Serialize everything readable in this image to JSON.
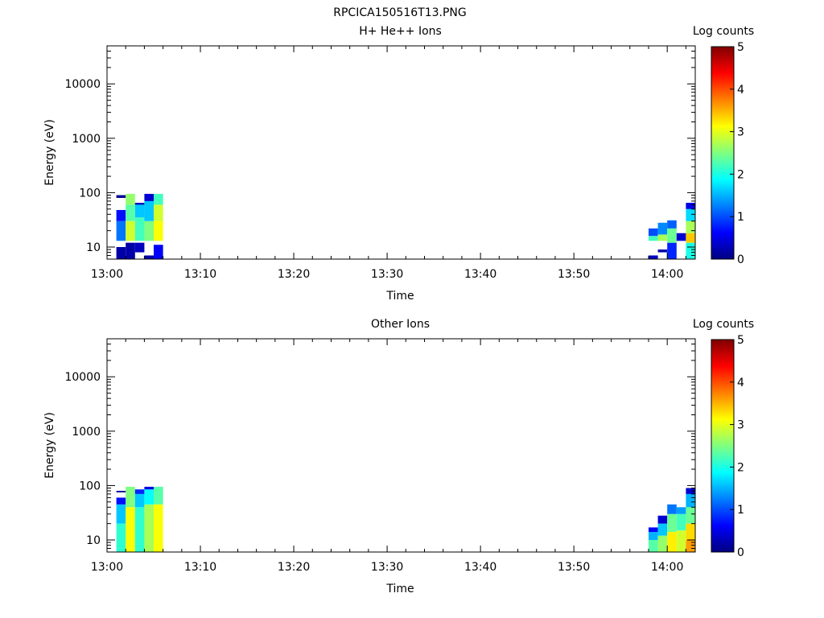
{
  "figure_title": "RPCICA150516T13.PNG",
  "chart_data": [
    {
      "type": "heatmap",
      "title": "H+ He++ Ions",
      "xlabel": "Time",
      "ylabel": "Energy (eV)",
      "x_ticks": [
        "13:00",
        "13:10",
        "13:20",
        "13:30",
        "13:40",
        "13:50",
        "14:00"
      ],
      "x_range": [
        "13:00",
        "14:03"
      ],
      "y_scale": "log",
      "y_range": [
        6,
        50000
      ],
      "y_ticks": [
        "10",
        "100",
        "1000",
        "10000"
      ],
      "colorbar": {
        "label": "Log counts",
        "range": [
          0,
          5
        ],
        "ticks": [
          "0",
          "1",
          "2",
          "3",
          "4",
          "5"
        ]
      },
      "cells": [
        {
          "t0": "13:01",
          "t1": "13:02",
          "e0": 6,
          "e1": 10,
          "v": 0.2
        },
        {
          "t0": "13:01",
          "t1": "13:02",
          "e0": 13,
          "e1": 30,
          "v": 1.2
        },
        {
          "t0": "13:01",
          "t1": "13:02",
          "e0": 30,
          "e1": 48,
          "v": 0.7
        },
        {
          "t0": "13:01",
          "t1": "13:02",
          "e0": 80,
          "e1": 90,
          "v": 0.1
        },
        {
          "t0": "13:02",
          "t1": "13:03",
          "e0": 6,
          "e1": 12,
          "v": 0.2
        },
        {
          "t0": "13:02",
          "t1": "13:03",
          "e0": 13,
          "e1": 30,
          "v": 2.9
        },
        {
          "t0": "13:02",
          "t1": "13:03",
          "e0": 30,
          "e1": 60,
          "v": 2.3
        },
        {
          "t0": "13:02",
          "t1": "13:03",
          "e0": 60,
          "e1": 95,
          "v": 2.6
        },
        {
          "t0": "13:03",
          "t1": "13:04",
          "e0": 8,
          "e1": 12,
          "v": 0.3
        },
        {
          "t0": "13:03",
          "t1": "13:04",
          "e0": 13,
          "e1": 35,
          "v": 2.2
        },
        {
          "t0": "13:03",
          "t1": "13:04",
          "e0": 35,
          "e1": 60,
          "v": 1.6
        },
        {
          "t0": "13:03",
          "t1": "13:04",
          "e0": 60,
          "e1": 65,
          "v": 0.3
        },
        {
          "t0": "13:04",
          "t1": "13:05",
          "e0": 6,
          "e1": 7,
          "v": 0.2
        },
        {
          "t0": "13:04",
          "t1": "13:05",
          "e0": 13,
          "e1": 30,
          "v": 2.5
        },
        {
          "t0": "13:04",
          "t1": "13:05",
          "e0": 30,
          "e1": 70,
          "v": 1.6
        },
        {
          "t0": "13:04",
          "t1": "13:05",
          "e0": 70,
          "e1": 95,
          "v": 0.4
        },
        {
          "t0": "13:05",
          "t1": "13:06",
          "e0": 6,
          "e1": 11,
          "v": 0.6
        },
        {
          "t0": "13:05",
          "t1": "13:06",
          "e0": 13,
          "e1": 30,
          "v": 3.1
        },
        {
          "t0": "13:05",
          "t1": "13:06",
          "e0": 30,
          "e1": 60,
          "v": 2.9
        },
        {
          "t0": "13:05",
          "t1": "13:06",
          "e0": 60,
          "e1": 95,
          "v": 2.2
        },
        {
          "t0": "13:58",
          "t1": "13:59",
          "e0": 6,
          "e1": 7,
          "v": 0.3
        },
        {
          "t0": "13:58",
          "t1": "13:59",
          "e0": 13,
          "e1": 16,
          "v": 2.2
        },
        {
          "t0": "13:58",
          "t1": "13:59",
          "e0": 16,
          "e1": 22,
          "v": 1.0
        },
        {
          "t0": "13:59",
          "t1": "14:00",
          "e0": 8,
          "e1": 9,
          "v": 0.2
        },
        {
          "t0": "13:59",
          "t1": "14:00",
          "e0": 13,
          "e1": 17,
          "v": 2.7
        },
        {
          "t0": "13:59",
          "t1": "14:00",
          "e0": 17,
          "e1": 28,
          "v": 1.3
        },
        {
          "t0": "14:00",
          "t1": "14:01",
          "e0": 6,
          "e1": 12,
          "v": 0.8
        },
        {
          "t0": "14:00",
          "t1": "14:01",
          "e0": 12,
          "e1": 22,
          "v": 2.4
        },
        {
          "t0": "14:00",
          "t1": "14:01",
          "e0": 22,
          "e1": 31,
          "v": 1.1
        },
        {
          "t0": "14:01",
          "t1": "14:02",
          "e0": 13,
          "e1": 18,
          "v": 0.4
        },
        {
          "t0": "14:02",
          "t1": "14:03",
          "e0": 6,
          "e1": 12,
          "v": 2.0
        },
        {
          "t0": "14:02",
          "t1": "14:03",
          "e0": 12,
          "e1": 18,
          "v": 3.4
        },
        {
          "t0": "14:02",
          "t1": "14:03",
          "e0": 18,
          "e1": 30,
          "v": 2.7
        },
        {
          "t0": "14:02",
          "t1": "14:03",
          "e0": 30,
          "e1": 50,
          "v": 1.7
        },
        {
          "t0": "14:02",
          "t1": "14:03",
          "e0": 50,
          "e1": 65,
          "v": 0.5
        }
      ]
    },
    {
      "type": "heatmap",
      "title": "Other Ions",
      "xlabel": "Time",
      "ylabel": "Energy (eV)",
      "x_ticks": [
        "13:00",
        "13:10",
        "13:20",
        "13:30",
        "13:40",
        "13:50",
        "14:00"
      ],
      "x_range": [
        "13:00",
        "14:03"
      ],
      "y_scale": "log",
      "y_range": [
        6,
        50000
      ],
      "y_ticks": [
        "10",
        "100",
        "1000",
        "10000"
      ],
      "colorbar": {
        "label": "Log counts",
        "range": [
          0,
          5
        ],
        "ticks": [
          "0",
          "1",
          "2",
          "3",
          "4",
          "5"
        ]
      },
      "cells": [
        {
          "t0": "13:01",
          "t1": "13:02",
          "e0": 6,
          "e1": 20,
          "v": 2.1
        },
        {
          "t0": "13:01",
          "t1": "13:02",
          "e0": 20,
          "e1": 45,
          "v": 1.6
        },
        {
          "t0": "13:01",
          "t1": "13:02",
          "e0": 45,
          "e1": 60,
          "v": 0.7
        },
        {
          "t0": "13:01",
          "t1": "13:02",
          "e0": 75,
          "e1": 80,
          "v": 0.1
        },
        {
          "t0": "13:02",
          "t1": "13:03",
          "e0": 6,
          "e1": 40,
          "v": 3.1
        },
        {
          "t0": "13:02",
          "t1": "13:03",
          "e0": 40,
          "e1": 95,
          "v": 2.5
        },
        {
          "t0": "13:03",
          "t1": "13:04",
          "e0": 6,
          "e1": 40,
          "v": 2.1
        },
        {
          "t0": "13:03",
          "t1": "13:04",
          "e0": 40,
          "e1": 70,
          "v": 1.6
        },
        {
          "t0": "13:03",
          "t1": "13:04",
          "e0": 70,
          "e1": 85,
          "v": 0.8
        },
        {
          "t0": "13:04",
          "t1": "13:05",
          "e0": 6,
          "e1": 45,
          "v": 2.7
        },
        {
          "t0": "13:04",
          "t1": "13:05",
          "e0": 45,
          "e1": 85,
          "v": 1.9
        },
        {
          "t0": "13:04",
          "t1": "13:05",
          "e0": 85,
          "e1": 95,
          "v": 0.5
        },
        {
          "t0": "13:05",
          "t1": "13:06",
          "e0": 6,
          "e1": 45,
          "v": 3.1
        },
        {
          "t0": "13:05",
          "t1": "13:06",
          "e0": 45,
          "e1": 95,
          "v": 2.3
        },
        {
          "t0": "13:58",
          "t1": "13:59",
          "e0": 6,
          "e1": 10,
          "v": 2.3
        },
        {
          "t0": "13:58",
          "t1": "13:59",
          "e0": 10,
          "e1": 14,
          "v": 1.5
        },
        {
          "t0": "13:58",
          "t1": "13:59",
          "e0": 14,
          "e1": 17,
          "v": 0.6
        },
        {
          "t0": "13:59",
          "t1": "14:00",
          "e0": 6,
          "e1": 12,
          "v": 2.6
        },
        {
          "t0": "13:59",
          "t1": "14:00",
          "e0": 12,
          "e1": 20,
          "v": 1.6
        },
        {
          "t0": "13:59",
          "t1": "14:00",
          "e0": 20,
          "e1": 28,
          "v": 0.4
        },
        {
          "t0": "14:00",
          "t1": "14:01",
          "e0": 6,
          "e1": 14,
          "v": 3.2
        },
        {
          "t0": "14:00",
          "t1": "14:01",
          "e0": 14,
          "e1": 30,
          "v": 2.4
        },
        {
          "t0": "14:00",
          "t1": "14:01",
          "e0": 30,
          "e1": 45,
          "v": 1.2
        },
        {
          "t0": "14:01",
          "t1": "14:02",
          "e0": 6,
          "e1": 15,
          "v": 2.9
        },
        {
          "t0": "14:01",
          "t1": "14:02",
          "e0": 15,
          "e1": 30,
          "v": 2.2
        },
        {
          "t0": "14:01",
          "t1": "14:02",
          "e0": 30,
          "e1": 40,
          "v": 1.4
        },
        {
          "t0": "14:02",
          "t1": "14:03",
          "e0": 6,
          "e1": 10,
          "v": 3.6
        },
        {
          "t0": "14:02",
          "t1": "14:03",
          "e0": 10,
          "e1": 20,
          "v": 3.3
        },
        {
          "t0": "14:02",
          "t1": "14:03",
          "e0": 20,
          "e1": 40,
          "v": 2.4
        },
        {
          "t0": "14:02",
          "t1": "14:03",
          "e0": 40,
          "e1": 70,
          "v": 1.5
        },
        {
          "t0": "14:02",
          "t1": "14:03",
          "e0": 70,
          "e1": 90,
          "v": 0.4
        }
      ]
    }
  ]
}
